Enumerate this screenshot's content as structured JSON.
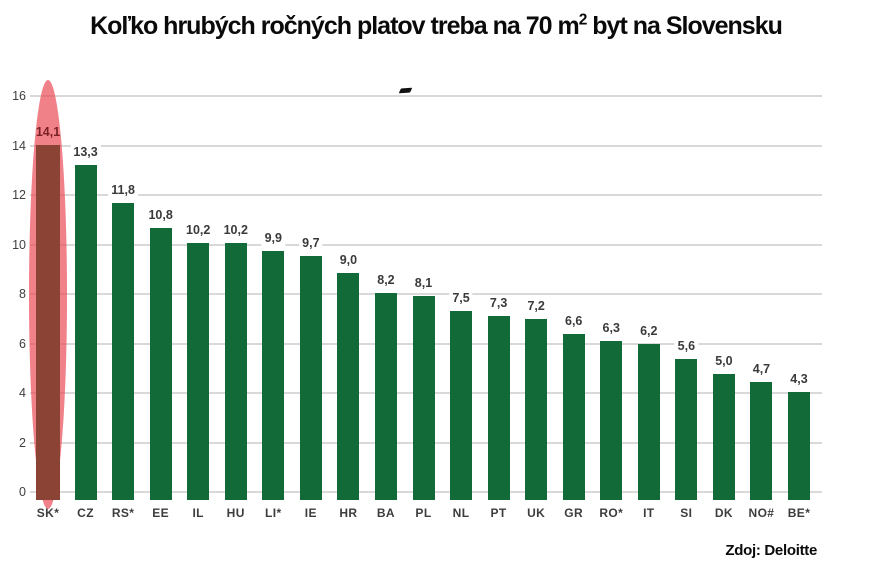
{
  "title": {
    "text_before_sup": "Koľko hrubých ročných platov treba na 70 m",
    "sup": "2",
    "text_after_sup": " byt na Slovensku"
  },
  "source": {
    "label": "Zdoj: Deloitte"
  },
  "chart_data": {
    "type": "bar",
    "title": "Koľko hrubých ročných platov treba na 70 m2 byt na Slovensku",
    "xlabel": "",
    "ylabel": "",
    "categories": [
      "SK*",
      "CZ",
      "RS*",
      "EE",
      "IL",
      "HU",
      "LI*",
      "IE",
      "HR",
      "BA",
      "PL",
      "NL",
      "PT",
      "UK",
      "GR",
      "RO*",
      "IT",
      "SI",
      "DK",
      "NO#",
      "BE*"
    ],
    "values": [
      14.1,
      13.3,
      11.8,
      10.8,
      10.2,
      10.2,
      9.9,
      9.7,
      9.0,
      8.2,
      8.1,
      7.5,
      7.3,
      7.2,
      6.6,
      6.3,
      6.2,
      5.6,
      5.0,
      4.7,
      4.3
    ],
    "value_labels": [
      "14,1",
      "13,3",
      "11,8",
      "10,8",
      "10,2",
      "10,2",
      "9,9",
      "9,7",
      "9,0",
      "8,2",
      "8,1",
      "7,5",
      "7,3",
      "7,2",
      "6,6",
      "6,3",
      "6,2",
      "5,6",
      "5,0",
      "4,7",
      "4,3"
    ],
    "ylim": [
      0,
      16
    ],
    "ytick_step": 2,
    "grid": true,
    "legend": "none",
    "bar_color": "#136a39",
    "gridline_color": "#d9d9d9",
    "value_label_color": "#3a3a3a",
    "highlight": {
      "category": "SK*",
      "bar_color": "#8a4335",
      "ellipse_color": "rgba(235,75,85,0.70)",
      "value_label_color": "#7b2025"
    },
    "source": "Zdoj: Deloitte"
  }
}
